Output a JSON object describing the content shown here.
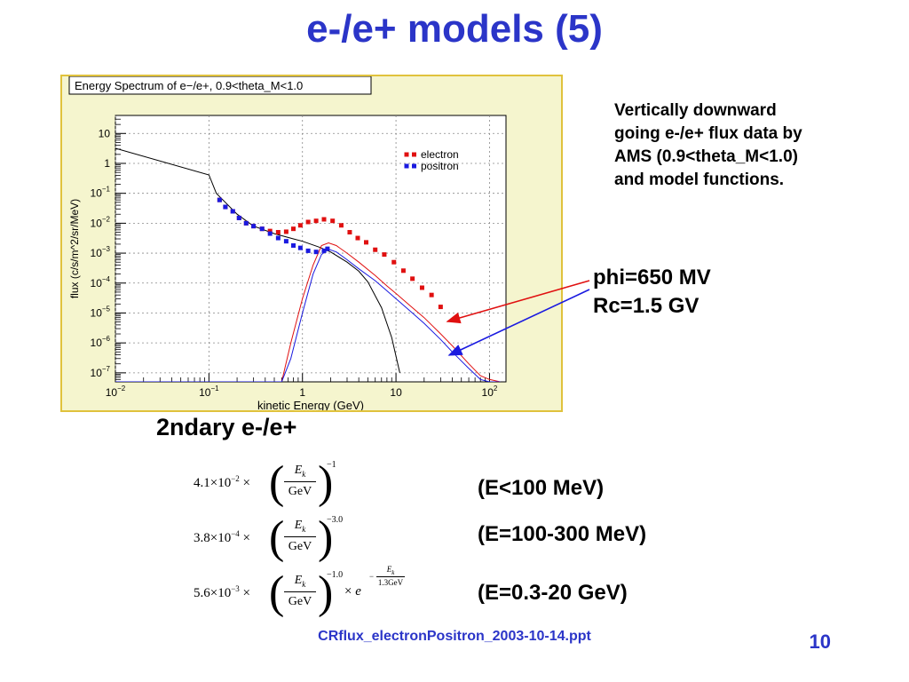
{
  "slide": {
    "title": "e-/e+ models (5)",
    "description_lines": [
      "Vertically downward",
      "going e-/e+ flux data by",
      "AMS (0.9<theta_M<1.0)",
      "and model functions."
    ],
    "param_lines": [
      "phi=650 MV",
      "Rc=1.5 GV"
    ],
    "subheading": "2ndary e-/e+",
    "formulas": [
      {
        "coef": "4.1",
        "exp": "−2",
        "power": "−1",
        "range": "(E<100 MeV)"
      },
      {
        "coef": "3.8",
        "exp": "−4",
        "power": "−3.0",
        "range": "(E=100-300 MeV)"
      },
      {
        "coef": "5.6",
        "exp": "−3",
        "power": "−1.0",
        "range": "(E=0.3-20 GeV)",
        "cutoff": "1.3GeV"
      }
    ],
    "formula_symbols": {
      "times10": "×10",
      "times": "×",
      "ek": "E",
      "ek_sub": "k",
      "gev": "GeV",
      "e": "e"
    },
    "footer": "CRflux_electronPositron_2003-10-14.ppt",
    "page_number": "10"
  },
  "colors": {
    "title": "#2b35c8",
    "electron": "#e01010",
    "positron": "#1a1ae0",
    "model_total": "#000000",
    "frame": "#e0c23c",
    "frame_bg": "#f5f5ce"
  },
  "chart_data": {
    "type": "scatter",
    "title": "Energy Spectrum of e−/e+, 0.9<theta_M<1.0",
    "xlabel": "kinetic Energy (GeV)",
    "ylabel": "flux (c/s/m^2/sr/MeV)",
    "xscale": "log",
    "yscale": "log",
    "xlim": [
      0.01,
      150
    ],
    "ylim": [
      5e-08,
      40
    ],
    "legend": "top-right",
    "grid": true,
    "xticks": [
      {
        "v": 0.01,
        "b": "10",
        "e": "−2"
      },
      {
        "v": 0.1,
        "b": "10",
        "e": "−1"
      },
      {
        "v": 1,
        "b": "1",
        "e": ""
      },
      {
        "v": 10,
        "b": "10",
        "e": ""
      },
      {
        "v": 100,
        "b": "10",
        "e": "2"
      }
    ],
    "yticks": [
      {
        "v": 10,
        "b": "10",
        "e": ""
      },
      {
        "v": 1,
        "b": "1",
        "e": ""
      },
      {
        "v": 0.1,
        "b": "10",
        "e": "−1"
      },
      {
        "v": 0.01,
        "b": "10",
        "e": "−2"
      },
      {
        "v": 0.001,
        "b": "10",
        "e": "−3"
      },
      {
        "v": 0.0001,
        "b": "10",
        "e": "−4"
      },
      {
        "v": 1e-05,
        "b": "10",
        "e": "−5"
      },
      {
        "v": 1e-06,
        "b": "10",
        "e": "−6"
      },
      {
        "v": 1e-07,
        "b": "10",
        "e": "−7"
      }
    ],
    "series": [
      {
        "name": "electron",
        "kind": "points",
        "color": "#e01010",
        "x": [
          0.13,
          0.15,
          0.18,
          0.21,
          0.25,
          0.3,
          0.37,
          0.45,
          0.55,
          0.67,
          0.8,
          0.95,
          1.15,
          1.4,
          1.7,
          2.1,
          2.6,
          3.2,
          3.9,
          4.8,
          6.0,
          7.5,
          9.5,
          12,
          15,
          19,
          24,
          30
        ],
        "y": [
          0.06,
          0.035,
          0.025,
          0.015,
          0.01,
          0.008,
          0.0065,
          0.0055,
          0.005,
          0.0052,
          0.0065,
          0.0085,
          0.011,
          0.012,
          0.0135,
          0.012,
          0.0085,
          0.005,
          0.0032,
          0.0023,
          0.0013,
          0.0009,
          0.0005,
          0.00026,
          0.00014,
          7e-05,
          4e-05,
          1.6e-05
        ]
      },
      {
        "name": "positron",
        "kind": "points",
        "color": "#1a1ae0",
        "x": [
          0.13,
          0.15,
          0.18,
          0.21,
          0.25,
          0.3,
          0.37,
          0.45,
          0.55,
          0.67,
          0.8,
          0.95,
          1.15,
          1.4,
          1.7,
          1.85
        ],
        "y": [
          0.06,
          0.035,
          0.025,
          0.015,
          0.01,
          0.008,
          0.0065,
          0.0045,
          0.0032,
          0.0025,
          0.0018,
          0.0015,
          0.0012,
          0.0011,
          0.0012,
          0.0014
        ]
      },
      {
        "kind": "line",
        "color": "#000000",
        "x": [
          0.01,
          0.1,
          0.12,
          0.2,
          0.3,
          0.5,
          0.8,
          1.0,
          1.5,
          2,
          3,
          4,
          5,
          7,
          9,
          11
        ],
        "y": [
          3.2,
          0.41,
          0.1,
          0.02,
          0.008,
          0.0045,
          0.003,
          0.0025,
          0.0016,
          0.0011,
          0.0005,
          0.00025,
          0.00011,
          1.5e-05,
          1.5e-06,
          1e-07
        ]
      },
      {
        "kind": "line",
        "color": "#e01010",
        "x": [
          0.6,
          0.75,
          1.0,
          1.3,
          1.6,
          1.9,
          2.3,
          3,
          4,
          6,
          8,
          10,
          15,
          20,
          30,
          40,
          60,
          80,
          100,
          130
        ],
        "y": [
          5e-08,
          1e-06,
          3e-05,
          0.0004,
          0.0018,
          0.0022,
          0.0018,
          0.001,
          0.0005,
          0.00018,
          8e-05,
          4.5e-05,
          1.5e-05,
          7e-06,
          2e-06,
          8e-07,
          2e-07,
          8e-08,
          6e-08,
          5e-08
        ]
      },
      {
        "kind": "line",
        "color": "#1a1ae0",
        "x": [
          0.01,
          0.6,
          0.75,
          1.0,
          1.3,
          1.6,
          1.9,
          2.3,
          3,
          4,
          6,
          8,
          10,
          15,
          20,
          30,
          40,
          60,
          80,
          100,
          130
        ],
        "y": [
          5e-08,
          5e-08,
          3e-07,
          1e-05,
          0.0002,
          0.0009,
          0.00135,
          0.0011,
          0.0006,
          0.0003,
          0.00012,
          5.5e-05,
          3e-05,
          1e-05,
          4.5e-06,
          1.3e-06,
          5e-07,
          1.4e-07,
          6e-08,
          5e-08,
          5e-08
        ]
      }
    ]
  }
}
